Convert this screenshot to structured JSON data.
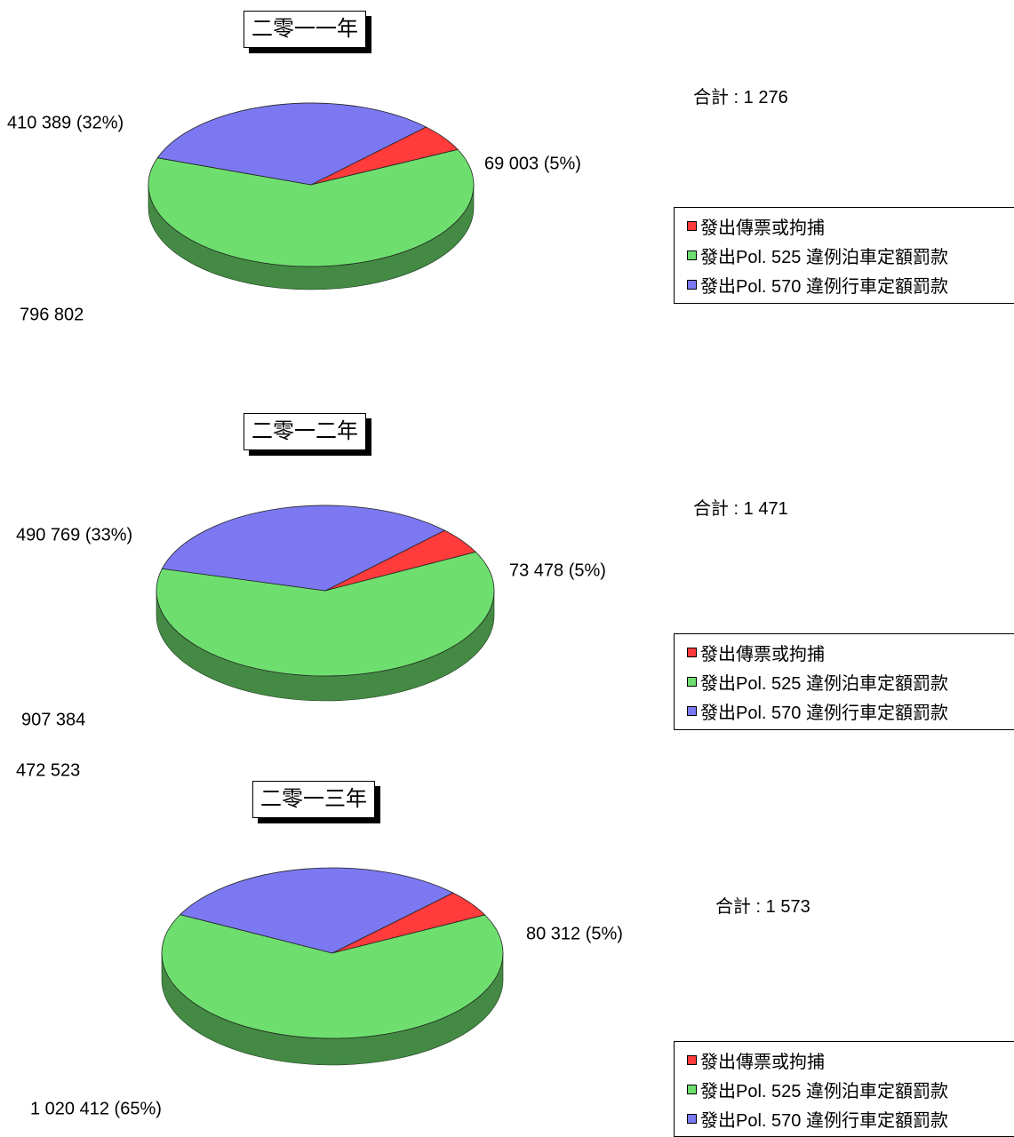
{
  "chart_data": [
    {
      "type": "pie",
      "title": "二零一一年",
      "total_label": "合計 : 1 276",
      "categories": [
        "發出傳票或拘捕",
        "發出Pol. 525 違例泊車定額罰款",
        "發出Pol. 570 違例行車定額罰款"
      ],
      "values": [
        69003,
        796802,
        410389
      ],
      "colors": [
        "#ff3b3b",
        "#6edf6e",
        "#7b78f2"
      ],
      "data_labels": [
        "69 003 (5%)",
        "796 802",
        "410 389 (32%)"
      ],
      "legend": "right"
    },
    {
      "type": "pie",
      "title": "二零一二年",
      "total_label": "合計 : 1 471",
      "categories": [
        "發出傳票或拘捕",
        "發出Pol. 525 違例泊車定額罰款",
        "發出Pol. 570 違例行車定額罰款"
      ],
      "values": [
        73478,
        907384,
        490769
      ],
      "colors": [
        "#ff3b3b",
        "#6edf6e",
        "#7b78f2"
      ],
      "data_labels": [
        "73 478 (5%)",
        "907 384",
        "490 769 (33%)"
      ],
      "legend": "right"
    },
    {
      "type": "pie",
      "title": "二零一三年",
      "total_label": "合計 : 1 573",
      "categories": [
        "發出傳票或拘捕",
        "發出Pol. 525 違例泊車定額罰款",
        "發出Pol. 570 違例行車定額罰款"
      ],
      "values": [
        80312,
        1020412,
        472523
      ],
      "colors": [
        "#ff3b3b",
        "#6edf6e",
        "#7b78f2"
      ],
      "data_labels": [
        "80 312 (5%)",
        "1 020 412 (65%)",
        "472 523"
      ],
      "legend": "right"
    }
  ]
}
